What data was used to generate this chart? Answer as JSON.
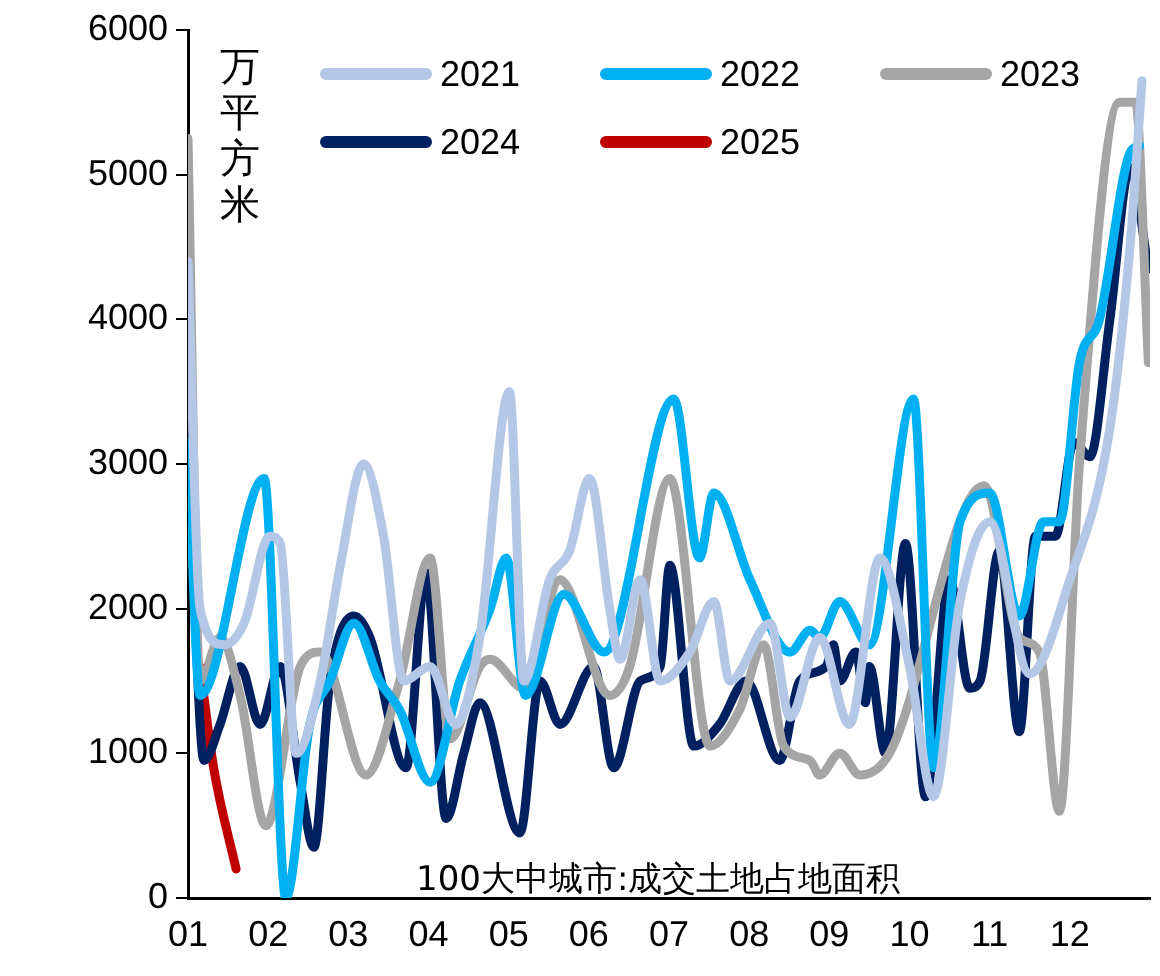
{
  "chart_data": {
    "type": "line",
    "ylabel": "万平方米",
    "annotations": [
      "100大中城市:成交土地占地面积"
    ],
    "legend": "top",
    "grid": false,
    "marker": "none",
    "line_style": "solid",
    "xlim": [
      1,
      13
    ],
    "xticks": [
      {
        "value": 1,
        "label": "01"
      },
      {
        "value": 2,
        "label": "02"
      },
      {
        "value": 3,
        "label": "03"
      },
      {
        "value": 4,
        "label": "04"
      },
      {
        "value": 5,
        "label": "05"
      },
      {
        "value": 6,
        "label": "06"
      },
      {
        "value": 7,
        "label": "07"
      },
      {
        "value": 8,
        "label": "08"
      },
      {
        "value": 9,
        "label": "09"
      },
      {
        "value": 10,
        "label": "10"
      },
      {
        "value": 11,
        "label": "11"
      },
      {
        "value": 12,
        "label": "12"
      }
    ],
    "ylim": [
      0,
      6000
    ],
    "yticks": [
      0,
      1000,
      2000,
      3000,
      4000,
      5000,
      6000
    ],
    "series": [
      {
        "name": "2021",
        "color": "#b4c7e7",
        "x": [
          1.0,
          1.15,
          1.45,
          1.7,
          2.02,
          2.15,
          2.35,
          2.65,
          2.9,
          3.19,
          3.44,
          3.69,
          4.02,
          4.34,
          4.64,
          5.01,
          5.19,
          5.51,
          5.76,
          6.01,
          6.26,
          6.39,
          6.64,
          6.89,
          7.26,
          7.56,
          7.76,
          8.26,
          8.51,
          8.88,
          9.25,
          9.63,
          10.0,
          10.3,
          10.63,
          11.0,
          11.5,
          12.0,
          12.5,
          12.75,
          12.9
        ],
        "values": [
          4400,
          2000,
          1750,
          1900,
          2500,
          2450,
          1000,
          1500,
          2300,
          3000,
          2500,
          1500,
          1600,
          1200,
          1800,
          3500,
          1500,
          2200,
          2400,
          2900,
          2000,
          1650,
          2200,
          1500,
          1700,
          2050,
          1500,
          1900,
          1250,
          1800,
          1200,
          2350,
          1600,
          700,
          2050,
          2600,
          1550,
          2200,
          3250,
          4500,
          5650
        ]
      },
      {
        "name": "2022",
        "color": "#00b0f0",
        "x": [
          1.0,
          1.15,
          1.95,
          2.22,
          2.52,
          2.77,
          3.07,
          3.39,
          3.64,
          4.02,
          4.39,
          4.77,
          4.97,
          5.21,
          5.69,
          6.19,
          7.06,
          7.38,
          7.56,
          8.01,
          8.51,
          8.76,
          8.88,
          9.13,
          9.5,
          10.05,
          10.3,
          10.63,
          11.0,
          11.37,
          11.67,
          11.87,
          12.12,
          12.37,
          12.75,
          12.87
        ],
        "values": [
          3150,
          1400,
          2900,
          0,
          1200,
          1500,
          1900,
          1500,
          1300,
          800,
          1500,
          2000,
          2350,
          1400,
          2100,
          1700,
          3450,
          2350,
          2800,
          2200,
          1700,
          1850,
          1800,
          2050,
          1750,
          3450,
          900,
          2600,
          2800,
          1950,
          2600,
          2600,
          3700,
          4000,
          5150,
          5200
        ]
      },
      {
        "name": "2023",
        "color": "#a5a5a5",
        "x": [
          1.0,
          1.15,
          1.4,
          1.65,
          1.97,
          2.4,
          2.65,
          3.22,
          3.64,
          4.02,
          4.27,
          4.64,
          4.77,
          5.19,
          5.64,
          6.26,
          6.51,
          7.01,
          7.51,
          7.88,
          8.18,
          8.43,
          8.76,
          8.88,
          9.13,
          9.38,
          9.75,
          10.93,
          11.37,
          11.62,
          11.87,
          12.12,
          12.62,
          12.82,
          12.98
        ],
        "values": [
          5250,
          1500,
          1800,
          1400,
          500,
          1600,
          1700,
          850,
          1500,
          2350,
          1100,
          1600,
          1650,
          1450,
          2200,
          1400,
          1600,
          2900,
          1050,
          1300,
          1750,
          1050,
          950,
          850,
          1000,
          850,
          1000,
          2850,
          1800,
          1700,
          600,
          3000,
          5500,
          5500,
          3700
        ]
      },
      {
        "name": "2024",
        "color": "#002060",
        "x": [
          1.0,
          1.2,
          1.4,
          1.65,
          1.9,
          2.15,
          2.4,
          2.57,
          2.77,
          3.07,
          3.27,
          3.72,
          3.97,
          4.22,
          4.44,
          4.64,
          5.14,
          5.39,
          5.64,
          6.06,
          6.31,
          6.64,
          6.89,
          7.01,
          7.31,
          7.63,
          7.96,
          8.38,
          8.63,
          8.96,
          9.05,
          9.13,
          9.33,
          9.45,
          9.5,
          9.7,
          9.95,
          10.2,
          10.5,
          10.75,
          10.88,
          11.12,
          11.37,
          11.57,
          11.82,
          12.05,
          12.25,
          12.5,
          12.75,
          12.98
        ],
        "values": [
          3300,
          950,
          1200,
          1600,
          1200,
          1600,
          800,
          350,
          1500,
          1950,
          1800,
          900,
          2250,
          550,
          1000,
          1350,
          450,
          1500,
          1200,
          1600,
          900,
          1500,
          1600,
          2300,
          1050,
          1200,
          1500,
          950,
          1500,
          1600,
          1750,
          1500,
          1700,
          1350,
          1600,
          1000,
          2450,
          700,
          2200,
          1450,
          1500,
          2400,
          1150,
          2500,
          2500,
          3150,
          3050,
          4000,
          5050,
          4350
        ]
      },
      {
        "name": "2025",
        "color": "#c00000",
        "x": [
          1.15,
          1.32,
          1.6
        ],
        "values": [
          1600,
          900,
          200
        ]
      }
    ]
  }
}
